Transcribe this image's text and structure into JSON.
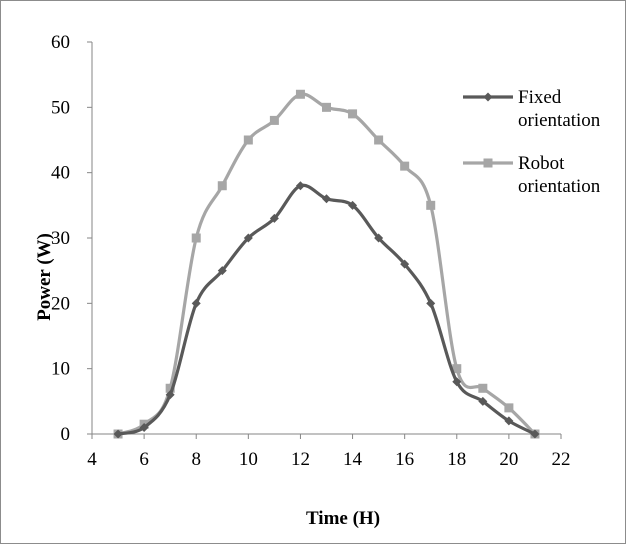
{
  "chart_data": {
    "type": "line",
    "title": "",
    "xlabel": "Time (H)",
    "ylabel": "Power (W)",
    "xlim": [
      4,
      22
    ],
    "ylim": [
      0,
      60
    ],
    "xticks": [
      "4",
      "6",
      "8",
      "10",
      "12",
      "14",
      "16",
      "18",
      "20",
      "22"
    ],
    "yticks": [
      "0",
      "10",
      "20",
      "30",
      "40",
      "50",
      "60"
    ],
    "grid": false,
    "legend_position": "top-right",
    "x": [
      5,
      6,
      7,
      8,
      9,
      10,
      11,
      12,
      13,
      14,
      15,
      16,
      17,
      18,
      19,
      20,
      21
    ],
    "series": [
      {
        "name_lines": [
          "Fixed",
          "orientation"
        ],
        "marker": "diamond",
        "color": "#595959",
        "values": [
          0,
          1,
          6,
          20,
          25,
          30,
          33,
          38,
          36,
          35,
          30,
          26,
          20,
          8,
          5,
          2,
          0
        ]
      },
      {
        "name_lines": [
          "Robot",
          "orientation"
        ],
        "marker": "square",
        "color": "#a6a6a6",
        "values": [
          0,
          1.5,
          7,
          30,
          38,
          45,
          48,
          52,
          50,
          49,
          45,
          41,
          35,
          10,
          7,
          4,
          0
        ]
      }
    ]
  }
}
